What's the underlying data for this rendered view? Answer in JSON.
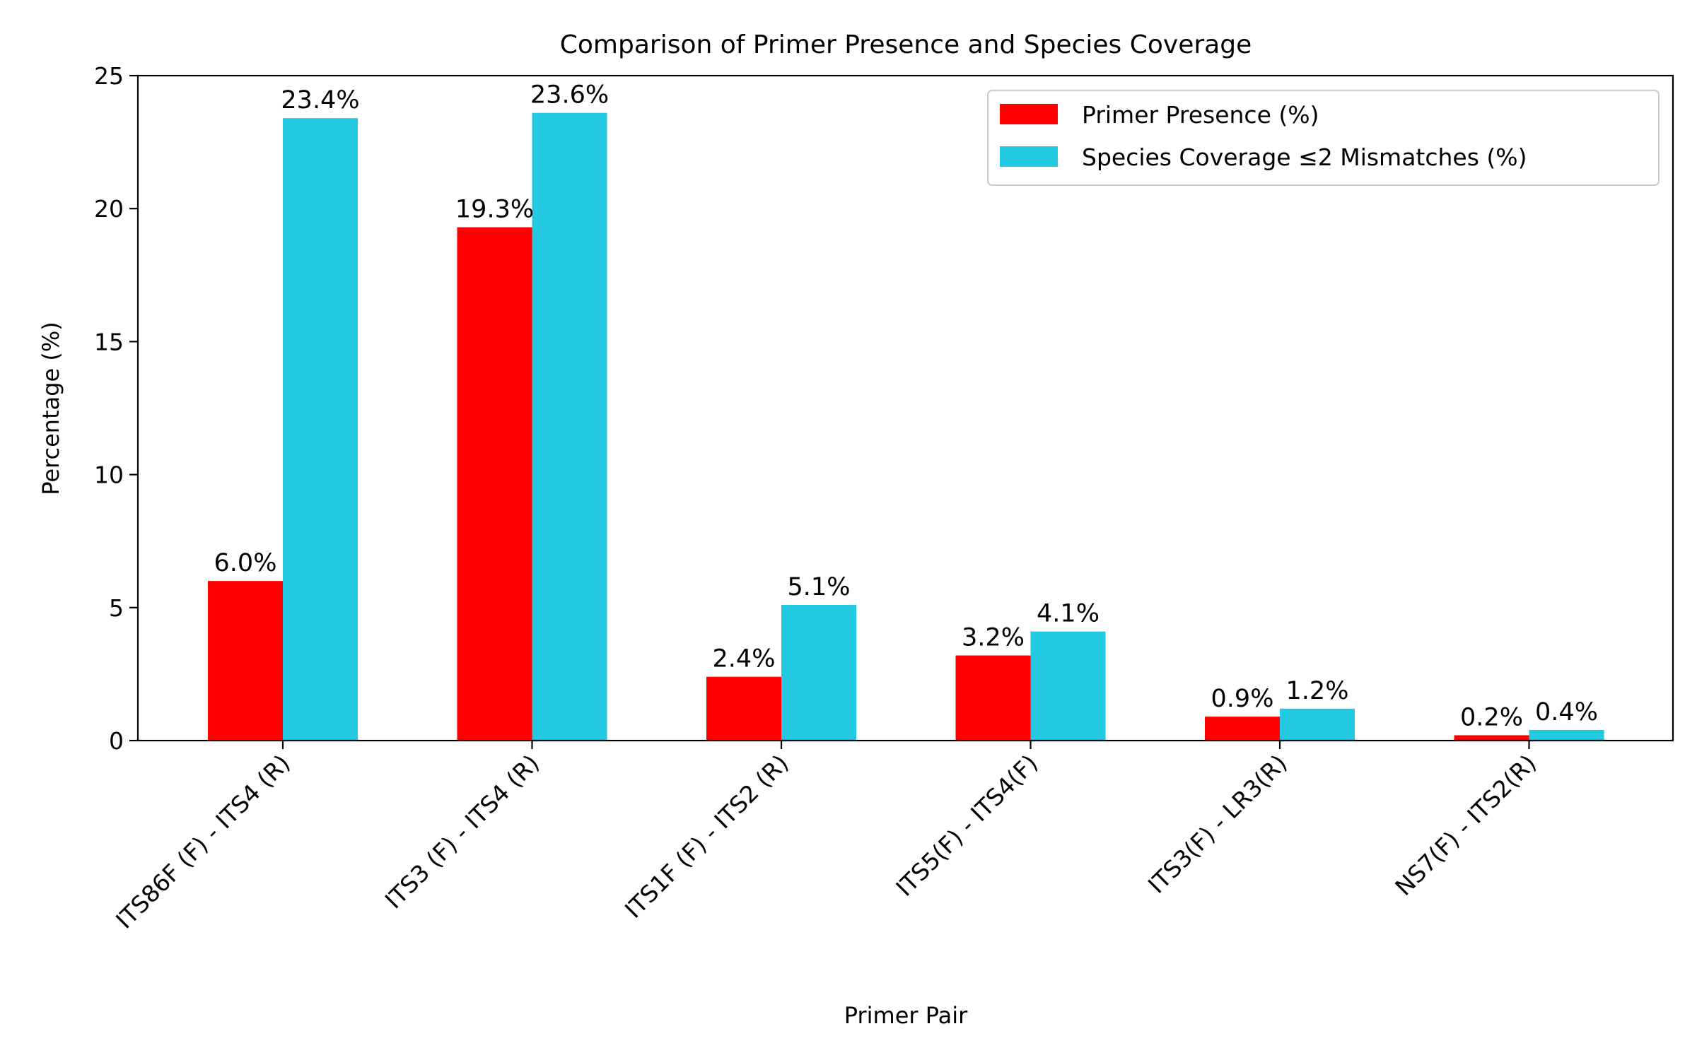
{
  "chart_data": {
    "type": "bar",
    "title": "Comparison of Primer Presence and Species Coverage",
    "xlabel": "Primer Pair",
    "ylabel": "Percentage (%)",
    "ylim": [
      0,
      25
    ],
    "yticks": [
      "0",
      "5",
      "10",
      "15",
      "20",
      "25"
    ],
    "grid": false,
    "legend_position": "top-right",
    "categories": [
      "ITS86F (F) - ITS4 (R)",
      "ITS3 (F) - ITS4 (R)",
      "ITS1F (F) - ITS2 (R)",
      "ITS5(F) - ITS4(F)",
      "ITS3(F) - LR3(R)",
      "NS7(F) - ITS2(R)"
    ],
    "series": [
      {
        "name": "Primer Presence (%)",
        "color": "#ff0000",
        "values": [
          6.0,
          19.3,
          2.4,
          3.2,
          0.9,
          0.2
        ],
        "labels": [
          "6.0%",
          "19.3%",
          "2.4%",
          "3.2%",
          "0.9%",
          "0.2%"
        ]
      },
      {
        "name": "Species Coverage ≤2 Mismatches (%)",
        "color": "#22c9e0",
        "values": [
          23.4,
          23.6,
          5.1,
          4.1,
          1.2,
          0.4
        ],
        "labels": [
          "23.4%",
          "23.6%",
          "5.1%",
          "4.1%",
          "1.2%",
          "0.4%"
        ]
      }
    ]
  }
}
